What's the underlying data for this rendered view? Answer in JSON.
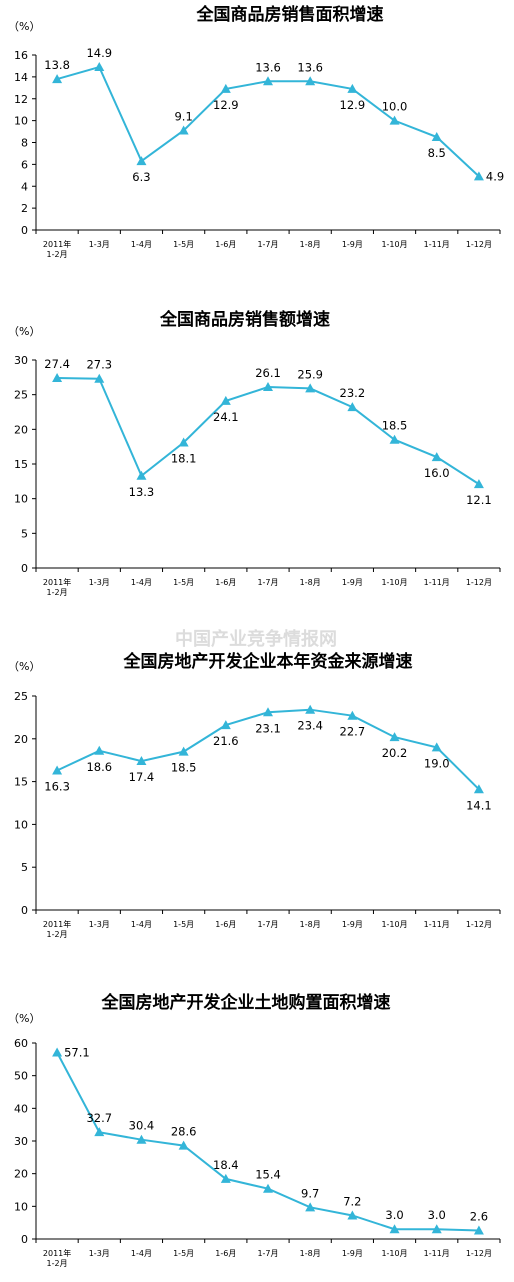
{
  "watermark": "中国产业竞争情报网",
  "series_color": "#33b5d8",
  "chart_data": [
    {
      "type": "line",
      "title": "全国商品房销售面积增速",
      "unit": "（%）",
      "categories": [
        "2011年\n1-2月",
        "1-3月",
        "1-4月",
        "1-5月",
        "1-6月",
        "1-7月",
        "1-8月",
        "1-9月",
        "1-10月",
        "1-11月",
        "1-12月"
      ],
      "values": [
        13.8,
        14.9,
        6.3,
        9.1,
        12.9,
        13.6,
        13.6,
        12.9,
        10.0,
        8.5,
        4.9
      ],
      "labels": [
        "13.8",
        "14.9",
        "6.3",
        "9.1",
        "12.9",
        "13.6",
        "13.6",
        "12.9",
        "10.0",
        "8.5",
        "4.9"
      ],
      "ylim": [
        0,
        16
      ],
      "yticks": [
        0,
        2,
        4,
        6,
        8,
        10,
        12,
        14,
        16
      ],
      "grid": false
    },
    {
      "type": "line",
      "title": "全国商品房销售额增速",
      "unit": "（%）",
      "categories": [
        "2011年\n1-2月",
        "1-3月",
        "1-4月",
        "1-5月",
        "1-6月",
        "1-7月",
        "1-8月",
        "1-9月",
        "1-10月",
        "1-11月",
        "1-12月"
      ],
      "values": [
        27.4,
        27.3,
        13.3,
        18.1,
        24.1,
        26.1,
        25.9,
        23.2,
        18.5,
        16.0,
        12.1
      ],
      "labels": [
        "27.4",
        "27.3",
        "13.3",
        "18.1",
        "24.1",
        "26.1",
        "25.9",
        "23.2",
        "18.5",
        "16.0",
        "12.1"
      ],
      "ylim": [
        0,
        30
      ],
      "yticks": [
        0,
        5,
        10,
        15,
        20,
        25,
        30
      ],
      "grid": false
    },
    {
      "type": "line",
      "title": "全国房地产开发企业本年资金来源增速",
      "unit": "（%）",
      "categories": [
        "2011年\n1-2月",
        "1-3月",
        "1-4月",
        "1-5月",
        "1-6月",
        "1-7月",
        "1-8月",
        "1-9月",
        "1-10月",
        "1-11月",
        "1-12月"
      ],
      "values": [
        16.3,
        18.6,
        17.4,
        18.5,
        21.6,
        23.1,
        23.4,
        22.7,
        20.2,
        19.0,
        14.1
      ],
      "labels": [
        "16.3",
        "18.6",
        "17.4",
        "18.5",
        "21.6",
        "23.1",
        "23.4",
        "22.7",
        "20.2",
        "19.0",
        "14.1"
      ],
      "ylim": [
        0,
        25
      ],
      "yticks": [
        0,
        5,
        10,
        15,
        20,
        25
      ],
      "grid": false
    },
    {
      "type": "line",
      "title": "全国房地产开发企业土地购置面积增速",
      "unit": "（%）",
      "categories": [
        "2011年\n1-2月",
        "1-3月",
        "1-4月",
        "1-5月",
        "1-6月",
        "1-7月",
        "1-8月",
        "1-9月",
        "1-10月",
        "1-11月",
        "1-12月"
      ],
      "values": [
        57.1,
        32.7,
        30.4,
        28.6,
        18.4,
        15.4,
        9.7,
        7.2,
        3.0,
        3.0,
        2.6
      ],
      "labels": [
        "57.1",
        "32.7",
        "30.4",
        "28.6",
        "18.4",
        "15.4",
        "9.7",
        "7.2",
        "3.0",
        "3.0",
        "2.6"
      ],
      "ylim": [
        0,
        60
      ],
      "yticks": [
        0,
        10,
        20,
        30,
        40,
        50,
        60
      ],
      "grid": false
    }
  ]
}
